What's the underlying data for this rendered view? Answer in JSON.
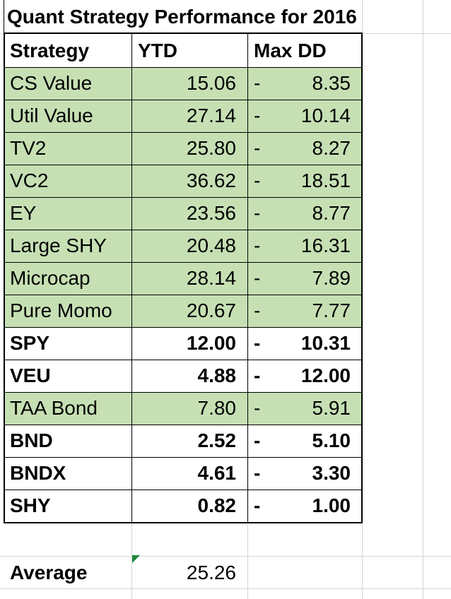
{
  "title": "Quant Strategy Performance for 2016",
  "headers": {
    "strategy": "Strategy",
    "ytd": "YTD",
    "maxdd": "Max DD"
  },
  "rows": [
    {
      "name": "CS Value",
      "ytd": "15.06",
      "dd_sign": "-",
      "dd": "8.35",
      "style": "green"
    },
    {
      "name": "Util Value",
      "ytd": "27.14",
      "dd_sign": "-",
      "dd": "10.14",
      "style": "green"
    },
    {
      "name": "TV2",
      "ytd": "25.80",
      "dd_sign": "-",
      "dd": "8.27",
      "style": "green"
    },
    {
      "name": "VC2",
      "ytd": "36.62",
      "dd_sign": "-",
      "dd": "18.51",
      "style": "green"
    },
    {
      "name": "EY",
      "ytd": "23.56",
      "dd_sign": "-",
      "dd": "8.77",
      "style": "green"
    },
    {
      "name": "Large SHY",
      "ytd": "20.48",
      "dd_sign": "-",
      "dd": "16.31",
      "style": "green"
    },
    {
      "name": "Microcap",
      "ytd": "28.14",
      "dd_sign": "-",
      "dd": "7.89",
      "style": "green"
    },
    {
      "name": "Pure Momo",
      "ytd": "20.67",
      "dd_sign": "-",
      "dd": "7.77",
      "style": "green"
    },
    {
      "name": "SPY",
      "ytd": "12.00",
      "dd_sign": "-",
      "dd": "10.31",
      "style": "bold"
    },
    {
      "name": "VEU",
      "ytd": "4.88",
      "dd_sign": "-",
      "dd": "12.00",
      "style": "bold"
    },
    {
      "name": "TAA Bond",
      "ytd": "7.80",
      "dd_sign": "-",
      "dd": "5.91",
      "style": "green"
    },
    {
      "name": "BND",
      "ytd": "2.52",
      "dd_sign": "-",
      "dd": "5.10",
      "style": "bold"
    },
    {
      "name": "BNDX",
      "ytd": "4.61",
      "dd_sign": "-",
      "dd": "3.30",
      "style": "bold"
    },
    {
      "name": "SHY",
      "ytd": "0.82",
      "dd_sign": "-",
      "dd": "1.00",
      "style": "bold"
    }
  ],
  "average": {
    "label": "Average",
    "value": "25.26"
  },
  "colors": {
    "highlight": "#c6e0b4",
    "gridline": "#d4d4d4",
    "border": "#000000",
    "comment_marker": "#1e8a3c"
  }
}
